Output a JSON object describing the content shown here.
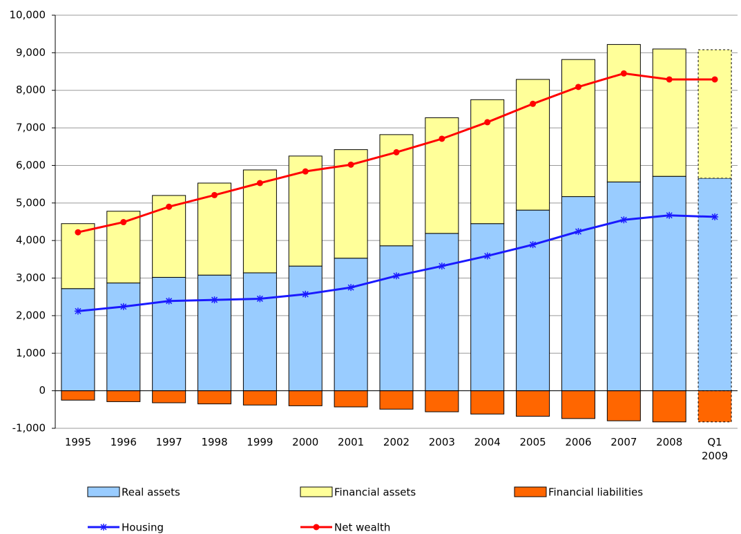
{
  "chart_data": {
    "type": "bar",
    "stacked": true,
    "categories": [
      "1995",
      "1996",
      "1997",
      "1998",
      "1999",
      "2000",
      "2001",
      "2002",
      "2003",
      "2004",
      "2005",
      "2006",
      "2007",
      "2008",
      "Q1 2009"
    ],
    "series": [
      {
        "name": "Real assets",
        "type": "bar",
        "color": "#99ccff",
        "values": [
          2720,
          2870,
          3020,
          3080,
          3140,
          3320,
          3530,
          3860,
          4190,
          4450,
          4810,
          5170,
          5560,
          5710,
          5660
        ]
      },
      {
        "name": "Financial assets",
        "type": "bar",
        "color": "#ffff99",
        "values": [
          1730,
          1910,
          2180,
          2450,
          2740,
          2930,
          2890,
          2960,
          3080,
          3300,
          3480,
          3650,
          3660,
          3390,
          3420
        ]
      },
      {
        "name": "Financial liabilities",
        "type": "bar",
        "color": "#ff6600",
        "values": [
          -250,
          -290,
          -320,
          -350,
          -380,
          -400,
          -430,
          -490,
          -560,
          -620,
          -680,
          -740,
          -800,
          -830,
          -830
        ]
      },
      {
        "name": "Housing",
        "type": "line",
        "marker": "star",
        "color": "#1a1aff",
        "values": [
          2120,
          2240,
          2390,
          2420,
          2450,
          2570,
          2750,
          3060,
          3320,
          3590,
          3890,
          4240,
          4550,
          4670,
          4630
        ]
      },
      {
        "name": "Net wealth",
        "type": "line",
        "marker": "circle",
        "color": "#ff0000",
        "values": [
          4220,
          4490,
          4900,
          5210,
          5530,
          5840,
          6020,
          6350,
          6710,
          7150,
          7640,
          8090,
          8450,
          8290,
          8290
        ]
      }
    ],
    "ylim": [
      -1000,
      10000
    ],
    "yticks": [
      {
        "value": -1000,
        "label": "-1,000"
      },
      0,
      {
        "value": 1000,
        "label": "1,000"
      },
      {
        "value": 2000,
        "label": "2,000"
      },
      {
        "value": 3000,
        "label": "3,000"
      },
      {
        "value": 4000,
        "label": "4,000"
      },
      {
        "value": 5000,
        "label": "5,000"
      },
      {
        "value": 6000,
        "label": "6,000"
      },
      {
        "value": 7000,
        "label": "7,000"
      },
      {
        "value": 8000,
        "label": "8,000"
      },
      {
        "value": 9000,
        "label": "9,000"
      },
      {
        "value": 10000,
        "label": "10,000"
      }
    ],
    "grid": true,
    "legend": "bottom"
  }
}
